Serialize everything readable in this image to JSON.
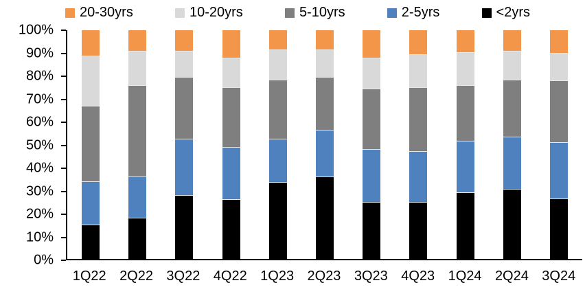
{
  "chart_data": {
    "type": "bar",
    "stacked": true,
    "unit": "percent",
    "title": "",
    "xlabel": "",
    "ylabel": "",
    "grid": false,
    "legend_position": "top",
    "categories": [
      "1Q22",
      "2Q22",
      "3Q22",
      "4Q22",
      "1Q23",
      "2Q23",
      "3Q23",
      "4Q23",
      "1Q24",
      "2Q24",
      "3Q24"
    ],
    "series": [
      {
        "name": "20-30yrs",
        "color": "#F4964A",
        "values": [
          11,
          9,
          9,
          12,
          8.5,
          8.5,
          12,
          10.5,
          9.5,
          9,
          10
        ]
      },
      {
        "name": "10-20yrs",
        "color": "#D9D9D9",
        "values": [
          22,
          15,
          11.5,
          13,
          13,
          12,
          13.5,
          14.5,
          14.5,
          12.5,
          12
        ]
      },
      {
        "name": "5-10yrs",
        "color": "#7F7F7F",
        "values": [
          33,
          40,
          27,
          26,
          26,
          23,
          26.5,
          28,
          24.5,
          25,
          27
        ]
      },
      {
        "name": "2-5yrs",
        "color": "#4E81BD",
        "values": [
          19,
          18,
          24.5,
          23,
          19,
          20.5,
          23,
          22,
          22.5,
          23,
          24.5
        ]
      },
      {
        "name": "<2yrs",
        "color": "#000000",
        "values": [
          15,
          18,
          28,
          26,
          33.5,
          36,
          25,
          25,
          29,
          30.5,
          26.5
        ]
      }
    ],
    "y_axis": {
      "min": 0,
      "max": 100,
      "step": 10,
      "tick_suffix": "%"
    },
    "axis_color": "#000000"
  }
}
